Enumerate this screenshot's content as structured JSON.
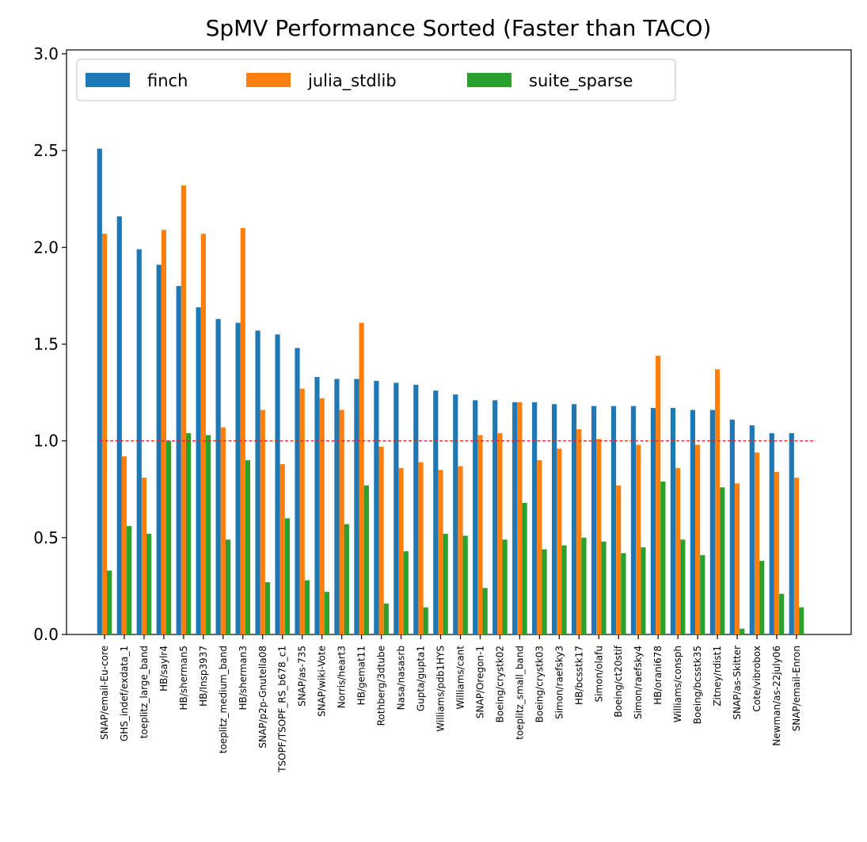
{
  "chart_data": {
    "type": "bar",
    "title": "SpMV Performance Sorted (Faster than TACO)",
    "xlabel": "",
    "ylabel": "",
    "ylim": [
      0,
      3.02
    ],
    "yticks": [
      "0.0",
      "0.5",
      "1.0",
      "1.5",
      "2.0",
      "2.5",
      "3.0"
    ],
    "reference_line": {
      "y": 1.0,
      "style": "dashed",
      "color": "#d62728"
    },
    "legend_position": "top-left",
    "grid": false,
    "categories": [
      "SNAP/email-Eu-core",
      "GHS_indef/exdata_1",
      "toeplitz_large_band",
      "HB/saylr4",
      "HB/sherman5",
      "HB/Insp3937",
      "toeplitz_medium_band",
      "HB/sherman3",
      "SNAP/p2p-Gnutella08",
      "TSOPF/TSOPF_RS_b678_c1",
      "SNAP/as-735",
      "SNAP/wiki-Vote",
      "Norris/heart3",
      "HB/gemat11",
      "Rothberg/3dtube",
      "Nasa/nasasrb",
      "Gupta/gupta1",
      "Williams/pdb1HYS",
      "Williams/cant",
      "SNAP/Oregon-1",
      "Boeing/crystk02",
      "toeplitz_small_band",
      "Boeing/crystk03",
      "Simon/raefsky3",
      "HB/bcsstk17",
      "Simon/olafu",
      "Boeing/ct20stif",
      "Simon/raefsky4",
      "HB/orani678",
      "Williams/consph",
      "Boeing/bcsstk35",
      "Zitney/rdist1",
      "SNAP/as-Skitter",
      "Cote/vibrobox",
      "Newman/as-22july06",
      "SNAP/email-Enron"
    ],
    "series": [
      {
        "name": "finch",
        "color": "#1f77b4",
        "values": [
          2.51,
          2.16,
          1.99,
          1.91,
          1.8,
          1.69,
          1.63,
          1.61,
          1.57,
          1.55,
          1.48,
          1.33,
          1.32,
          1.32,
          1.31,
          1.3,
          1.29,
          1.26,
          1.24,
          1.21,
          1.21,
          1.2,
          1.2,
          1.19,
          1.19,
          1.18,
          1.18,
          1.18,
          1.17,
          1.17,
          1.16,
          1.16,
          1.11,
          1.08,
          1.04,
          1.04
        ]
      },
      {
        "name": "julia_stdlib",
        "color": "#ff7f0e",
        "values": [
          2.07,
          0.92,
          0.81,
          2.09,
          2.32,
          2.07,
          1.07,
          2.1,
          1.16,
          0.88,
          1.27,
          1.22,
          1.16,
          1.61,
          0.97,
          0.86,
          0.89,
          0.85,
          0.87,
          1.03,
          1.04,
          1.2,
          0.9,
          0.96,
          1.06,
          1.01,
          0.77,
          0.98,
          1.44,
          0.86,
          0.98,
          1.37,
          0.78,
          0.94,
          0.84,
          0.81
        ]
      },
      {
        "name": "suite_sparse",
        "color": "#2ca02c",
        "values": [
          0.33,
          0.56,
          0.52,
          1.0,
          1.04,
          1.03,
          0.49,
          0.9,
          0.27,
          0.6,
          0.28,
          0.22,
          0.57,
          0.77,
          0.16,
          0.43,
          0.14,
          0.52,
          0.51,
          0.24,
          0.49,
          0.68,
          0.44,
          0.46,
          0.5,
          0.48,
          0.42,
          0.45,
          0.79,
          0.49,
          0.41,
          0.76,
          0.03,
          0.38,
          0.21,
          0.14
        ]
      }
    ]
  }
}
